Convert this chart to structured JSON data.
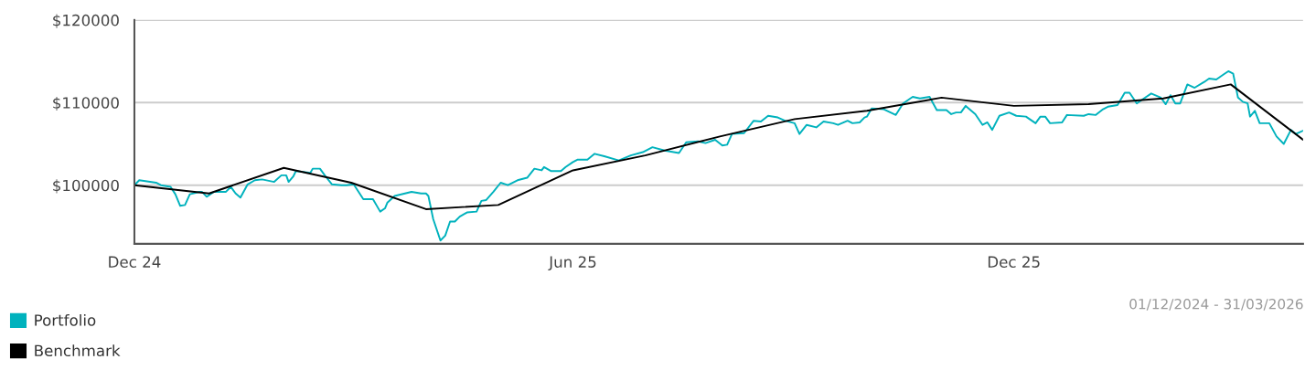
{
  "chart_data": {
    "type": "line",
    "annotations": [
      "01/12/2024 - 31/03/2026"
    ],
    "xlim": [
      "2024-12-01",
      "2026-03-31"
    ],
    "xticks": [
      {
        "value": "2024-12-01",
        "label": "Dec 24"
      },
      {
        "value": "2025-06-01",
        "label": "Jun 25"
      },
      {
        "value": "2025-12-01",
        "label": "Dec 25"
      }
    ],
    "ylim": [
      92900,
      120000
    ],
    "yticks": [
      {
        "value": 100000,
        "label": "$100000"
      },
      {
        "value": 110000,
        "label": "$110000"
      },
      {
        "value": 120000,
        "label": "$120000"
      }
    ],
    "grid": "y",
    "legend": "bottom left",
    "marker": "none",
    "line_style": "solid",
    "series": [
      {
        "name": "Portfolio",
        "color": "#00b2bd",
        "x": [
          "2024-12-01",
          "2024-12-03",
          "2024-12-10",
          "2024-12-12",
          "2024-12-16",
          "2024-12-18",
          "2024-12-20",
          "2024-12-22",
          "2024-12-24",
          "2024-12-28",
          "2024-12-29",
          "2024-12-31",
          "2025-01-03",
          "2025-01-08",
          "2025-01-10",
          "2025-01-12",
          "2025-01-14",
          "2025-01-17",
          "2025-01-20",
          "2025-01-23",
          "2025-01-28",
          "2025-01-31",
          "2025-02-02",
          "2025-02-03",
          "2025-02-05",
          "2025-02-06",
          "2025-02-12",
          "2025-02-13",
          "2025-02-16",
          "2025-02-18",
          "2025-02-21",
          "2025-02-25",
          "2025-02-27",
          "2025-03-02",
          "2025-03-06",
          "2025-03-10",
          "2025-03-13",
          "2025-03-15",
          "2025-03-16",
          "2025-03-19",
          "2025-03-26",
          "2025-03-30",
          "2025-04-01",
          "2025-04-02",
          "2025-04-04",
          "2025-04-07",
          "2025-04-09",
          "2025-04-11",
          "2025-04-13",
          "2025-04-15",
          "2025-04-18",
          "2025-04-22",
          "2025-04-24",
          "2025-04-26",
          "2025-04-29",
          "2025-05-02",
          "2025-05-05",
          "2025-05-09",
          "2025-05-13",
          "2025-05-16",
          "2025-05-19",
          "2025-05-20",
          "2025-05-23",
          "2025-05-27",
          "2025-05-29",
          "2025-06-01",
          "2025-06-03",
          "2025-06-07",
          "2025-06-10",
          "2025-06-14",
          "2025-06-20",
          "2025-06-25",
          "2025-06-30",
          "2025-07-04",
          "2025-07-09",
          "2025-07-15",
          "2025-07-18",
          "2025-07-23",
          "2025-07-26",
          "2025-07-30",
          "2025-08-02",
          "2025-08-04",
          "2025-08-06",
          "2025-08-11",
          "2025-08-15",
          "2025-08-18",
          "2025-08-21",
          "2025-08-25",
          "2025-08-28",
          "2025-09-01",
          "2025-09-03",
          "2025-09-06",
          "2025-09-10",
          "2025-09-13",
          "2025-09-17",
          "2025-09-19",
          "2025-09-23",
          "2025-09-25",
          "2025-09-28",
          "2025-09-30",
          "2025-10-01",
          "2025-10-03",
          "2025-10-08",
          "2025-10-13",
          "2025-10-16",
          "2025-10-20",
          "2025-10-23",
          "2025-10-27",
          "2025-10-30",
          "2025-11-03",
          "2025-11-05",
          "2025-11-07",
          "2025-11-09",
          "2025-11-11",
          "2025-11-15",
          "2025-11-18",
          "2025-11-20",
          "2025-11-22",
          "2025-11-25",
          "2025-11-29",
          "2025-12-02",
          "2025-12-06",
          "2025-12-10",
          "2025-12-12",
          "2025-12-14",
          "2025-12-16",
          "2025-12-21",
          "2025-12-23",
          "2025-12-30",
          "2026-01-01",
          "2026-01-04",
          "2026-01-07",
          "2026-01-09",
          "2026-01-13",
          "2026-01-16",
          "2026-01-18",
          "2026-01-21",
          "2026-01-23",
          "2026-01-27",
          "2026-01-31",
          "2026-02-02",
          "2026-02-04",
          "2026-02-06",
          "2026-02-08",
          "2026-02-11",
          "2026-02-14",
          "2026-02-18",
          "2026-02-20",
          "2026-02-23",
          "2026-02-26",
          "2026-02-28",
          "2026-03-02",
          "2026-03-04",
          "2026-03-06",
          "2026-03-08",
          "2026-03-09",
          "2026-03-11",
          "2026-03-13",
          "2026-03-17",
          "2026-03-20",
          "2026-03-23",
          "2026-03-26",
          "2026-03-28",
          "2026-03-31"
        ],
        "values": [
          100000,
          100600,
          100300,
          100000,
          99800,
          98900,
          97500,
          97600,
          98900,
          99200,
          99200,
          98600,
          99200,
          99200,
          99800,
          99000,
          98500,
          100100,
          100600,
          100700,
          100400,
          101200,
          101200,
          100400,
          101100,
          101700,
          101500,
          102000,
          102000,
          101200,
          100100,
          100000,
          100000,
          100100,
          98300,
          98300,
          96800,
          97200,
          97900,
          98700,
          99200,
          99000,
          99000,
          98700,
          95900,
          93300,
          93900,
          95600,
          95600,
          96200,
          96700,
          96800,
          98100,
          98200,
          99200,
          100300,
          100000,
          100600,
          100900,
          102000,
          101800,
          102200,
          101700,
          101700,
          102200,
          102800,
          103100,
          103100,
          103800,
          103500,
          103000,
          103600,
          104000,
          104600,
          104200,
          103900,
          105200,
          105300,
          105100,
          105500,
          104800,
          104900,
          106200,
          106300,
          107800,
          107700,
          108400,
          108200,
          107800,
          107500,
          106200,
          107300,
          107000,
          107700,
          107500,
          107300,
          107800,
          107500,
          107600,
          108200,
          108300,
          109300,
          109200,
          108500,
          109900,
          110700,
          110500,
          110700,
          109100,
          109100,
          108600,
          108800,
          108800,
          109600,
          108600,
          107300,
          107600,
          106700,
          108400,
          108800,
          108400,
          108300,
          107500,
          108300,
          108300,
          107500,
          107600,
          108500,
          108400,
          108600,
          108500,
          109200,
          109500,
          109700,
          111200,
          111200,
          109900,
          110300,
          111100,
          110600,
          109800,
          110900,
          109900,
          109900,
          112200,
          111800,
          112500,
          112900,
          112800,
          113400,
          113800,
          113500,
          110600,
          110100,
          109900,
          108300,
          109000,
          107500,
          107500,
          105900,
          105000,
          106700,
          106200,
          106600
        ]
      },
      {
        "name": "Benchmark",
        "color": "#000000",
        "x": [
          "2024-12-01",
          "2025-01-01",
          "2025-02-01",
          "2025-03-01",
          "2025-04-01",
          "2025-05-01",
          "2025-06-01",
          "2025-07-01",
          "2025-08-01",
          "2025-09-01",
          "2025-10-01",
          "2025-11-01",
          "2025-12-01",
          "2026-01-01",
          "2026-02-01",
          "2026-03-01",
          "2026-03-31"
        ],
        "values": [
          100000,
          99000,
          102100,
          100300,
          97100,
          97600,
          101800,
          103600,
          105900,
          108000,
          109000,
          110600,
          109600,
          109800,
          110500,
          112200,
          105500
        ]
      }
    ]
  }
}
